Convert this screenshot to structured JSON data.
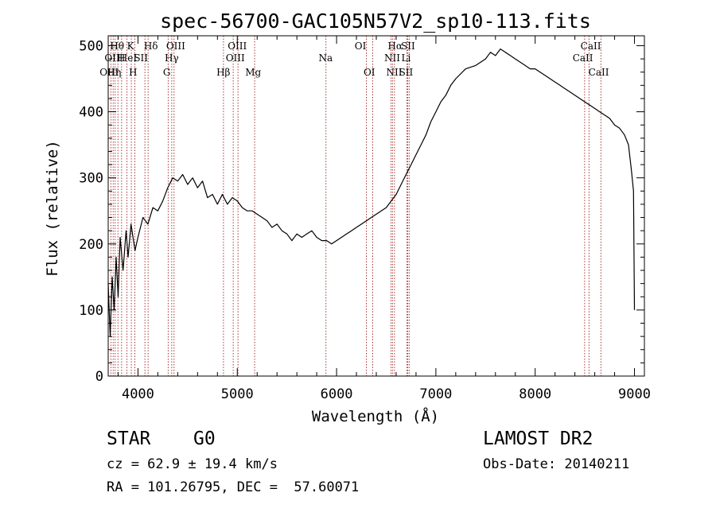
{
  "chart_data": {
    "type": "line",
    "title": "spec-56700-GAC105N57V2_sp10-113.fits",
    "xlabel": "Wavelength (Å)",
    "ylabel": "Flux (relative)",
    "xlim": [
      3700,
      9100
    ],
    "ylim": [
      0,
      515
    ],
    "x_ticks": [
      4000,
      5000,
      6000,
      7000,
      8000,
      9000
    ],
    "y_ticks": [
      0,
      100,
      200,
      300,
      400,
      500
    ],
    "grid": false,
    "line_color": "#000000",
    "marker_color": "#a02020",
    "series": [
      {
        "x": [
          3700,
          3720,
          3740,
          3760,
          3780,
          3800,
          3820,
          3850,
          3880,
          3900,
          3930,
          3970,
          4000,
          4050,
          4100,
          4150,
          4200,
          4250,
          4300,
          4350,
          4400,
          4450,
          4500,
          4550,
          4600,
          4650,
          4700,
          4750,
          4800,
          4850,
          4900,
          4950,
          5000,
          5050,
          5100,
          5150,
          5200,
          5250,
          5300,
          5350,
          5400,
          5450,
          5500,
          5550,
          5600,
          5650,
          5700,
          5750,
          5800,
          5850,
          5900,
          5950,
          6000,
          6050,
          6100,
          6150,
          6200,
          6250,
          6300,
          6350,
          6400,
          6450,
          6500,
          6550,
          6600,
          6650,
          6700,
          6750,
          6800,
          6850,
          6900,
          6950,
          7000,
          7050,
          7100,
          7150,
          7200,
          7300,
          7400,
          7500,
          7550,
          7600,
          7650,
          7700,
          7750,
          7800,
          7850,
          7900,
          7950,
          8000,
          8050,
          8100,
          8150,
          8200,
          8250,
          8300,
          8350,
          8400,
          8450,
          8500,
          8550,
          8600,
          8650,
          8700,
          8750,
          8800,
          8850,
          8900,
          8940,
          8970,
          8990,
          9000
        ],
        "y": [
          140,
          60,
          150,
          100,
          180,
          120,
          210,
          160,
          220,
          180,
          230,
          190,
          210,
          240,
          230,
          255,
          250,
          265,
          285,
          300,
          295,
          305,
          290,
          300,
          285,
          295,
          270,
          275,
          260,
          275,
          260,
          270,
          265,
          255,
          250,
          250,
          245,
          240,
          235,
          225,
          230,
          220,
          215,
          205,
          215,
          210,
          215,
          220,
          210,
          205,
          205,
          200,
          205,
          210,
          215,
          220,
          225,
          230,
          235,
          240,
          245,
          250,
          255,
          265,
          275,
          290,
          305,
          320,
          335,
          350,
          365,
          385,
          400,
          415,
          425,
          440,
          450,
          465,
          470,
          480,
          490,
          485,
          495,
          490,
          485,
          480,
          475,
          470,
          465,
          465,
          460,
          455,
          450,
          445,
          440,
          435,
          430,
          425,
          420,
          415,
          410,
          405,
          400,
          395,
          390,
          380,
          375,
          365,
          350,
          310,
          280,
          100
        ]
      }
    ],
    "line_markers": [
      {
        "x": 3727,
        "label": "OII"
      },
      {
        "x": 3750,
        "label": "OII"
      },
      {
        "x": 3770,
        "label": "Hθ"
      },
      {
        "x": 3798,
        "label": "Hη"
      },
      {
        "x": 3835,
        "label": "Hη"
      },
      {
        "x": 3889,
        "label": "HeI"
      },
      {
        "x": 3933,
        "label": "K"
      },
      {
        "x": 3968,
        "label": "H"
      },
      {
        "x": 4070,
        "label": "SII"
      },
      {
        "x": 4102,
        "label": "Hδ"
      },
      {
        "x": 4304,
        "label": "G"
      },
      {
        "x": 4340,
        "label": "Hγ"
      },
      {
        "x": 4363,
        "label": "OIII"
      },
      {
        "x": 4861,
        "label": "Hβ"
      },
      {
        "x": 4959,
        "label": "OIII"
      },
      {
        "x": 5007,
        "label": "OIII"
      },
      {
        "x": 5175,
        "label": "Mg"
      },
      {
        "x": 5893,
        "label": "Na"
      },
      {
        "x": 6300,
        "label": "OI"
      },
      {
        "x": 6364,
        "label": "OI"
      },
      {
        "x": 6548,
        "label": "NII"
      },
      {
        "x": 6563,
        "label": "Hα"
      },
      {
        "x": 6583,
        "label": "NII"
      },
      {
        "x": 6707,
        "label": "Li"
      },
      {
        "x": 6716,
        "label": "SII"
      },
      {
        "x": 6731,
        "label": "SII"
      },
      {
        "x": 8498,
        "label": "CaII"
      },
      {
        "x": 8542,
        "label": "CaII"
      },
      {
        "x": 8662,
        "label": "CaII"
      }
    ]
  },
  "marker_labels": {
    "row1": [
      {
        "x": 3790,
        "text": "Hθ"
      },
      {
        "x": 3925,
        "text": "K"
      },
      {
        "x": 4130,
        "text": "Hδ"
      },
      {
        "x": 4380,
        "text": "OIII"
      },
      {
        "x": 5000,
        "text": "OIII"
      },
      {
        "x": 6240,
        "text": "OI"
      },
      {
        "x": 6590,
        "text": "Hα"
      },
      {
        "x": 6720,
        "text": "SII"
      },
      {
        "x": 8560,
        "text": "CaII"
      }
    ],
    "row2": [
      {
        "x": 3740,
        "text": "OII"
      },
      {
        "x": 3830,
        "text": "H"
      },
      {
        "x": 3900,
        "text": "HeI"
      },
      {
        "x": 4030,
        "text": "SII"
      },
      {
        "x": 4340,
        "text": "Hγ"
      },
      {
        "x": 4980,
        "text": "OIII"
      },
      {
        "x": 5890,
        "text": "Na"
      },
      {
        "x": 6560,
        "text": "NII"
      },
      {
        "x": 6700,
        "text": "Li"
      },
      {
        "x": 8480,
        "text": "CaII"
      }
    ],
    "row3": [
      {
        "x": 3710,
        "text": "OIII"
      },
      {
        "x": 3760,
        "text": "Hη"
      },
      {
        "x": 3950,
        "text": "H"
      },
      {
        "x": 4290,
        "text": "G"
      },
      {
        "x": 4860,
        "text": "Hβ"
      },
      {
        "x": 5160,
        "text": "Mg"
      },
      {
        "x": 6330,
        "text": "OI"
      },
      {
        "x": 6580,
        "text": "NII"
      },
      {
        "x": 6700,
        "text": "SII"
      },
      {
        "x": 8640,
        "text": "CaII"
      }
    ]
  },
  "info": {
    "class_label": "STAR",
    "subclass": "G0",
    "survey": "LAMOST DR2",
    "cz": "cz = 62.9 ± 19.4 km/s",
    "obs_date": "Obs-Date: 20140211",
    "coords": "RA = 101.26795, DEC =  57.60071"
  }
}
